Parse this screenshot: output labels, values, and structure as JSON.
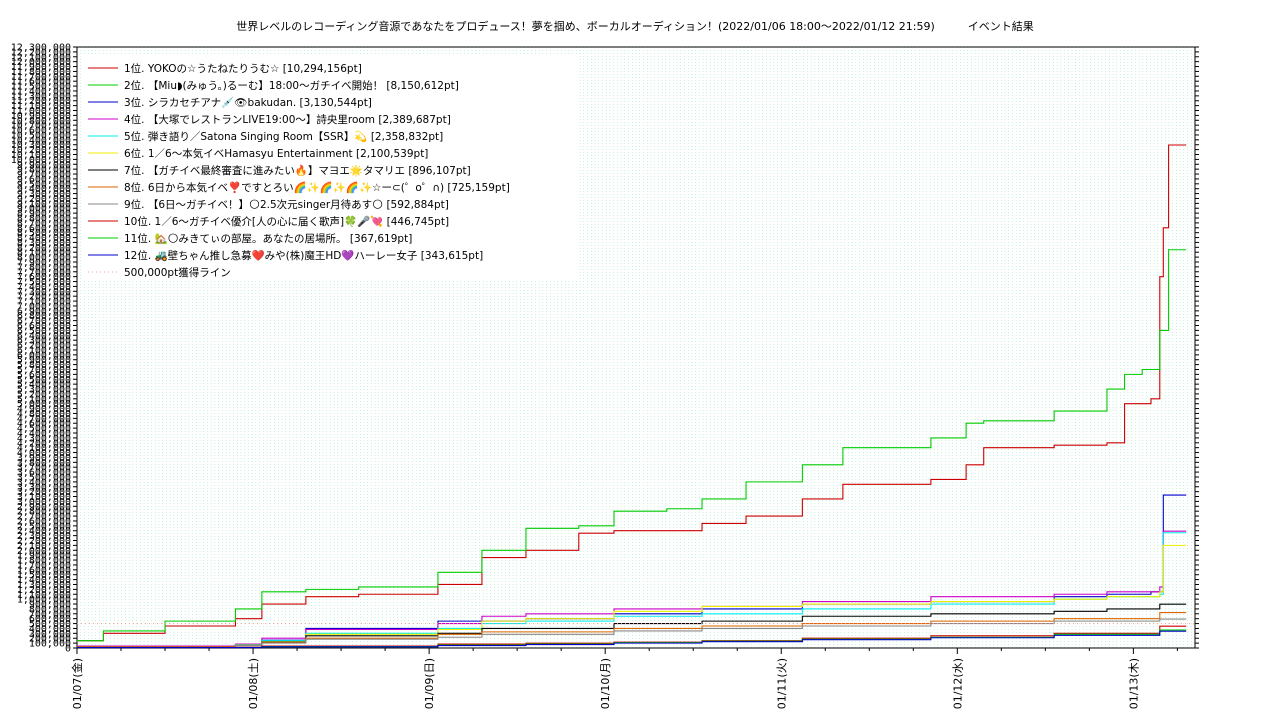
{
  "chart_data": {
    "type": "line",
    "title": "世界レベルのレコーディング音源であなたをプロデュース！夢を掴め、ボーカルオーディション！(2022/01/06 18:00〜2022/01/12 21:59)　　　イベント結果",
    "xlabel": "",
    "ylabel": "",
    "x_ticks": [
      "01/07(金)",
      "01/08(土)",
      "01/09(日)",
      "01/10(月)",
      "01/11(火)",
      "01/12(水)",
      "01/13(木)"
    ],
    "xlim": [
      0,
      6.35
    ],
    "ylim": [
      0,
      12300000
    ],
    "y_tick_step": 100000,
    "grid": true,
    "legend_position": "top-left",
    "series": [
      {
        "name": "1位. YOKOの☆うたねたりうむ☆ [10,294,156pt]",
        "color": "#cc0000",
        "points": [
          [
            0,
            150000
          ],
          [
            0.15,
            300000
          ],
          [
            0.5,
            450000
          ],
          [
            0.9,
            600000
          ],
          [
            1.05,
            900000
          ],
          [
            1.3,
            1050000
          ],
          [
            1.6,
            1100000
          ],
          [
            2.05,
            1300000
          ],
          [
            2.3,
            1850000
          ],
          [
            2.55,
            2000000
          ],
          [
            2.85,
            2350000
          ],
          [
            3.05,
            2400000
          ],
          [
            3.35,
            2400000
          ],
          [
            3.55,
            2550000
          ],
          [
            3.8,
            2700000
          ],
          [
            4.12,
            3050000
          ],
          [
            4.35,
            3350000
          ],
          [
            4.85,
            3450000
          ],
          [
            5.05,
            3750000
          ],
          [
            5.15,
            4100000
          ],
          [
            5.55,
            4150000
          ],
          [
            5.85,
            4200000
          ],
          [
            5.95,
            5000000
          ],
          [
            6.1,
            5100000
          ],
          [
            6.15,
            7600000
          ],
          [
            6.17,
            8600000
          ],
          [
            6.2,
            10294156
          ],
          [
            6.3,
            10294156
          ]
        ]
      },
      {
        "name": "2位. 【Miu◗(みゅう。)るーむ】18:00〜ガチイベ開始！ [8,150,612pt]",
        "color": "#00cc00",
        "points": [
          [
            0,
            150000
          ],
          [
            0.15,
            350000
          ],
          [
            0.5,
            550000
          ],
          [
            0.9,
            800000
          ],
          [
            1.05,
            1150000
          ],
          [
            1.3,
            1200000
          ],
          [
            1.6,
            1250000
          ],
          [
            2.05,
            1550000
          ],
          [
            2.3,
            2000000
          ],
          [
            2.55,
            2450000
          ],
          [
            2.85,
            2500000
          ],
          [
            3.05,
            2800000
          ],
          [
            3.35,
            2850000
          ],
          [
            3.55,
            3050000
          ],
          [
            3.8,
            3400000
          ],
          [
            4.12,
            3750000
          ],
          [
            4.35,
            4100000
          ],
          [
            4.85,
            4300000
          ],
          [
            5.05,
            4600000
          ],
          [
            5.15,
            4650000
          ],
          [
            5.55,
            4850000
          ],
          [
            5.85,
            5300000
          ],
          [
            5.95,
            5600000
          ],
          [
            6.05,
            5700000
          ],
          [
            6.15,
            6500000
          ],
          [
            6.2,
            8150612
          ],
          [
            6.3,
            8150612
          ]
        ]
      },
      {
        "name": "3位. シラカセチアナ💉👁bakudan. [3,130,544pt]",
        "color": "#0000cc",
        "points": [
          [
            0,
            30000
          ],
          [
            0.9,
            60000
          ],
          [
            1.05,
            160000
          ],
          [
            1.3,
            400000
          ],
          [
            2.05,
            550000
          ],
          [
            2.55,
            600000
          ],
          [
            3.05,
            700000
          ],
          [
            3.55,
            800000
          ],
          [
            4.12,
            900000
          ],
          [
            4.85,
            950000
          ],
          [
            5.55,
            1050000
          ],
          [
            5.85,
            1100000
          ],
          [
            6.1,
            1150000
          ],
          [
            6.17,
            3130544
          ],
          [
            6.3,
            3130544
          ]
        ]
      },
      {
        "name": "4位. 【大塚でレストランLIVE19:00〜】詩央里room [2,389,687pt]",
        "color": "#cc00cc",
        "points": [
          [
            0,
            40000
          ],
          [
            0.9,
            80000
          ],
          [
            1.05,
            200000
          ],
          [
            1.3,
            380000
          ],
          [
            2.05,
            500000
          ],
          [
            2.3,
            650000
          ],
          [
            2.55,
            700000
          ],
          [
            3.05,
            800000
          ],
          [
            3.55,
            850000
          ],
          [
            4.12,
            950000
          ],
          [
            4.85,
            1050000
          ],
          [
            5.55,
            1100000
          ],
          [
            5.85,
            1150000
          ],
          [
            6.15,
            1250000
          ],
          [
            6.17,
            2389687
          ],
          [
            6.3,
            2389687
          ]
        ]
      },
      {
        "name": "5位. 弾き語り／Satona Singing Room【SSR】💫 [2,358,832pt]",
        "color": "#00eeee",
        "points": [
          [
            0,
            30000
          ],
          [
            0.9,
            70000
          ],
          [
            1.05,
            150000
          ],
          [
            1.3,
            300000
          ],
          [
            2.05,
            400000
          ],
          [
            2.3,
            500000
          ],
          [
            2.55,
            550000
          ],
          [
            3.05,
            650000
          ],
          [
            3.55,
            700000
          ],
          [
            4.12,
            800000
          ],
          [
            4.85,
            900000
          ],
          [
            5.55,
            1000000
          ],
          [
            5.85,
            1050000
          ],
          [
            6.15,
            1100000
          ],
          [
            6.17,
            2358832
          ],
          [
            6.3,
            2358832
          ]
        ]
      },
      {
        "name": "6位. 1／6〜本気イベHamasyu Entertainment [2,100,539pt]",
        "color": "#eeee00",
        "points": [
          [
            0,
            20000
          ],
          [
            0.9,
            50000
          ],
          [
            1.05,
            130000
          ],
          [
            1.3,
            280000
          ],
          [
            2.05,
            380000
          ],
          [
            2.3,
            550000
          ],
          [
            2.55,
            600000
          ],
          [
            3.05,
            750000
          ],
          [
            3.55,
            850000
          ],
          [
            4.12,
            900000
          ],
          [
            4.85,
            950000
          ],
          [
            5.55,
            1000000
          ],
          [
            5.85,
            1050000
          ],
          [
            6.15,
            1150000
          ],
          [
            6.17,
            2100539
          ],
          [
            6.3,
            2100539
          ]
        ]
      },
      {
        "name": "7位. 【ガチイベ最終審査に進みたい🔥】マヨエ🌟タマリエ [896,107pt]",
        "color": "#000000",
        "points": [
          [
            0,
            20000
          ],
          [
            0.9,
            50000
          ],
          [
            1.05,
            120000
          ],
          [
            1.3,
            250000
          ],
          [
            2.05,
            300000
          ],
          [
            2.3,
            400000
          ],
          [
            3.05,
            500000
          ],
          [
            3.55,
            550000
          ],
          [
            4.12,
            650000
          ],
          [
            4.85,
            700000
          ],
          [
            5.55,
            750000
          ],
          [
            5.85,
            800000
          ],
          [
            6.15,
            896107
          ],
          [
            6.3,
            896107
          ]
        ]
      },
      {
        "name": "8位. 6日から本気イベ❣️ですとろい🌈✨🌈✨🌈✨☆ー⊂(゜o゜∩) [725,159pt]",
        "color": "#dd6600",
        "points": [
          [
            0,
            30000
          ],
          [
            0.9,
            60000
          ],
          [
            1.05,
            110000
          ],
          [
            1.3,
            200000
          ],
          [
            2.05,
            280000
          ],
          [
            2.3,
            330000
          ],
          [
            3.05,
            400000
          ],
          [
            3.55,
            450000
          ],
          [
            4.12,
            500000
          ],
          [
            4.85,
            550000
          ],
          [
            5.55,
            600000
          ],
          [
            6.15,
            725159
          ],
          [
            6.3,
            725159
          ]
        ]
      },
      {
        "name": "9位. 【6日〜ガチイベ！】🌕2.5次元singer月待あす🌕 [592,884pt]",
        "color": "#888888",
        "points": [
          [
            0,
            20000
          ],
          [
            0.9,
            50000
          ],
          [
            1.05,
            100000
          ],
          [
            1.3,
            180000
          ],
          [
            2.05,
            220000
          ],
          [
            2.3,
            280000
          ],
          [
            3.05,
            350000
          ],
          [
            3.55,
            400000
          ],
          [
            4.12,
            450000
          ],
          [
            4.85,
            500000
          ],
          [
            5.55,
            550000
          ],
          [
            6.15,
            592884
          ],
          [
            6.3,
            592884
          ]
        ]
      },
      {
        "name": "10位. 1／6〜ガチイベ優介[人の心に届く歌声]🍀🎤💘 [446,745pt]",
        "color": "#cc0000",
        "points": [
          [
            0,
            15000
          ],
          [
            1.05,
            40000
          ],
          [
            2.05,
            80000
          ],
          [
            2.55,
            100000
          ],
          [
            3.05,
            120000
          ],
          [
            3.55,
            150000
          ],
          [
            4.12,
            200000
          ],
          [
            4.85,
            250000
          ],
          [
            5.55,
            300000
          ],
          [
            6.15,
            446745
          ],
          [
            6.3,
            446745
          ]
        ]
      },
      {
        "name": "11位. 🏡🌕みきてぃの部屋。あなたの居場所。 [367,619pt]",
        "color": "#00cc00",
        "points": [
          [
            0,
            10000
          ],
          [
            1.05,
            30000
          ],
          [
            2.05,
            60000
          ],
          [
            2.55,
            80000
          ],
          [
            3.05,
            110000
          ],
          [
            3.55,
            140000
          ],
          [
            4.12,
            180000
          ],
          [
            4.85,
            220000
          ],
          [
            5.55,
            280000
          ],
          [
            6.15,
            367619
          ],
          [
            6.3,
            367619
          ]
        ]
      },
      {
        "name": "12位. 🚜壁ちゃん推し急募❤️みや(株)魔王HD💜ハーレー女子 [343,615pt]",
        "color": "#0000cc",
        "points": [
          [
            0,
            8000
          ],
          [
            1.05,
            25000
          ],
          [
            2.05,
            50000
          ],
          [
            2.55,
            70000
          ],
          [
            3.05,
            100000
          ],
          [
            3.55,
            130000
          ],
          [
            4.12,
            170000
          ],
          [
            4.85,
            210000
          ],
          [
            5.55,
            260000
          ],
          [
            6.15,
            343615
          ],
          [
            6.3,
            343615
          ]
        ]
      }
    ],
    "reference_line": {
      "name": "500,000pt獲得ライン",
      "color": "#ff9999",
      "value": 500000
    }
  }
}
